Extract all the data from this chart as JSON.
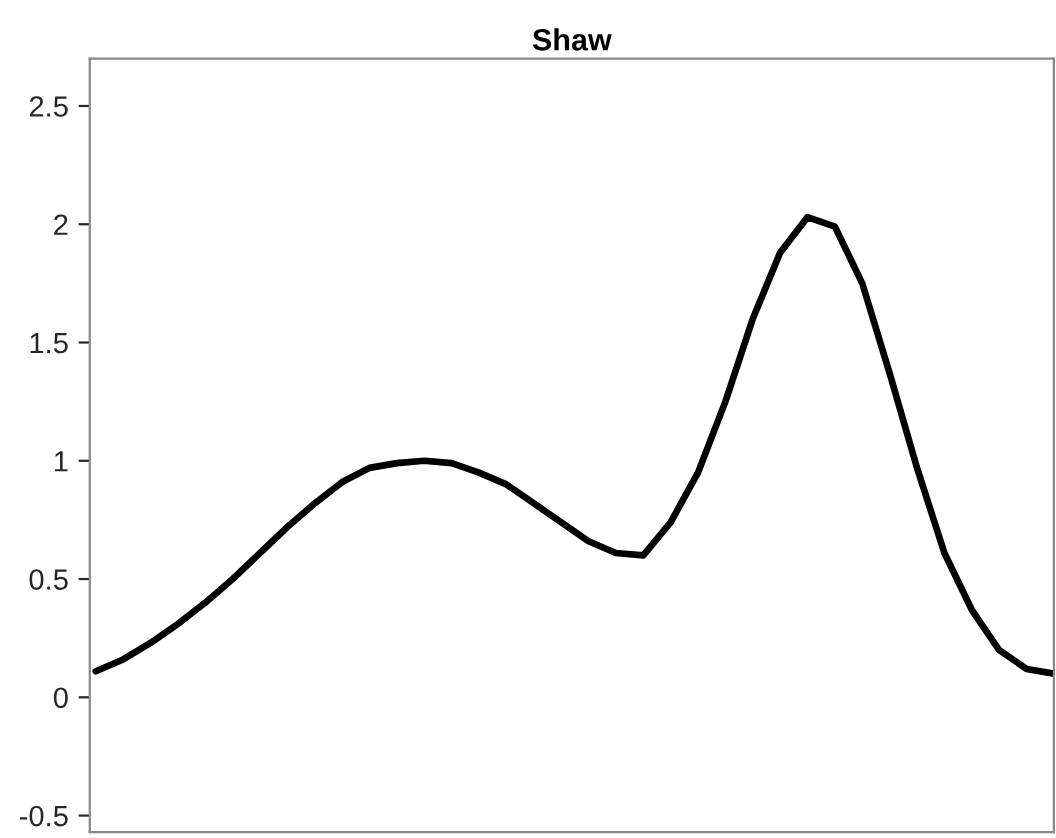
{
  "chart_data": {
    "type": "line",
    "title": "Shaw",
    "categories": [
      null,
      null,
      null,
      null,
      null,
      null,
      null,
      null,
      null,
      null,
      null,
      null,
      null,
      null,
      null,
      null,
      null,
      null,
      null,
      null,
      null,
      null,
      null,
      null,
      null,
      null,
      null,
      null,
      null,
      null,
      null,
      null,
      null,
      null,
      null,
      null
    ],
    "series": [
      {
        "color": "#000000",
        "values": [
          0.11,
          0.16,
          0.23,
          0.31,
          0.4,
          0.5,
          0.61,
          0.72,
          0.82,
          0.91,
          0.97,
          0.99,
          1.0,
          0.99,
          0.95,
          0.9,
          0.82,
          0.74,
          0.66,
          0.61,
          0.6,
          0.74,
          0.95,
          1.25,
          1.6,
          1.88,
          2.03,
          1.99,
          1.75,
          1.37,
          0.97,
          0.61,
          0.37,
          0.2,
          0.12,
          0.1
        ]
      }
    ],
    "ylim": [
      -0.57,
      2.7
    ],
    "yticks": [
      -0.5,
      0,
      0.5,
      1,
      1.5,
      2,
      2.5
    ],
    "tick_labels": "y",
    "grid": false,
    "legend": false,
    "marker": "none",
    "line_style": "solid"
  }
}
